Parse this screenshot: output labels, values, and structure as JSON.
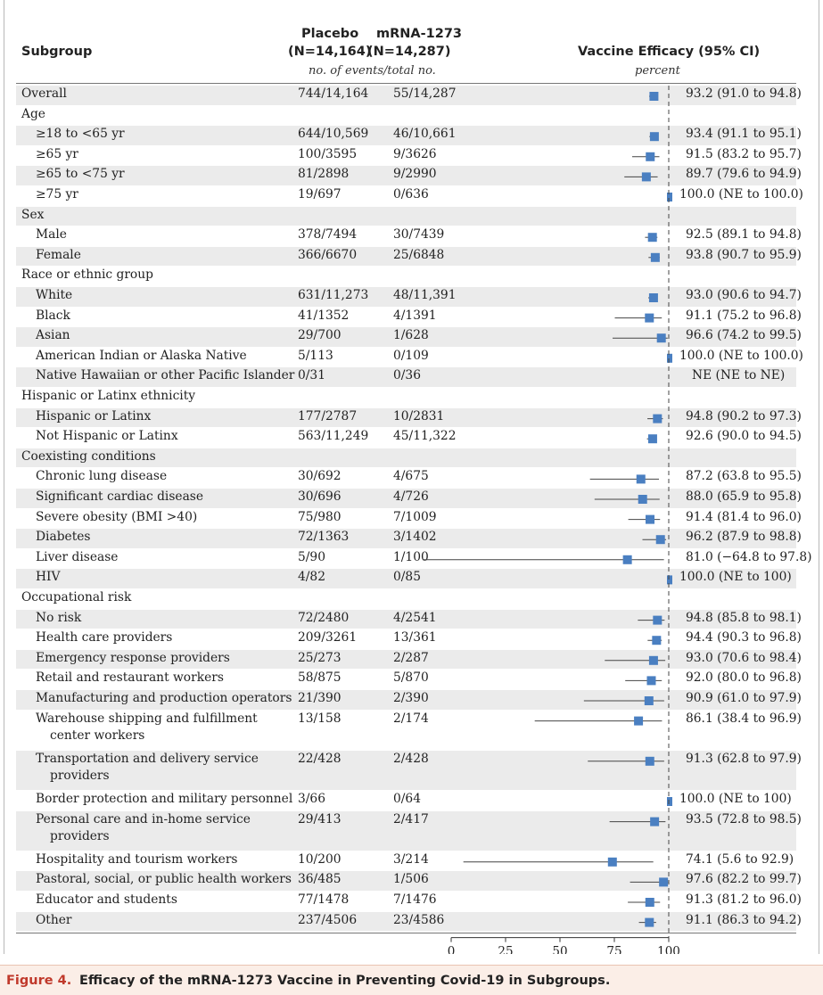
{
  "header": {
    "subgroup": "Subgroup",
    "placebo_title": "Placebo",
    "placebo_n": "(N=14,164)",
    "mrna_title": "mRNA-1273",
    "mrna_n": "(N=14,287)",
    "events_label": "no. of events/total no.",
    "efficacy_title": "Vaccine Efficacy (95% CI)",
    "percent_label": "percent"
  },
  "caption": {
    "figure_label": "Figure 4.",
    "title": "Efficacy of the mRNA-1273 Vaccine in Preventing Covid-19 in Subgroups."
  },
  "colors": {
    "marker": "#4a7fc1",
    "caption_label": "#c0392b",
    "caption_bg": "#fbeee7"
  },
  "chart_data": {
    "type": "forest",
    "xlim": [
      0,
      100
    ],
    "xticks": [
      "0",
      "25",
      "50",
      "75",
      "100"
    ],
    "reference_line": 100,
    "rows": [
      {
        "label": "Overall",
        "placebo": "744/14,164",
        "mrna": "55/14,287",
        "ci_text": "93.2 (91.0 to 94.8)",
        "ve": 93.2,
        "lo": 91.0,
        "hi": 94.8
      },
      {
        "label": "Age",
        "header": true
      },
      {
        "label": "≥18 to <65 yr",
        "indent": true,
        "placebo": "644/10,569",
        "mrna": "46/10,661",
        "ci_text": "93.4 (91.1 to 95.1)",
        "ve": 93.4,
        "lo": 91.1,
        "hi": 95.1
      },
      {
        "label": "≥65 yr",
        "indent": true,
        "placebo": "100/3595",
        "mrna": "9/3626",
        "ci_text": "91.5 (83.2 to 95.7)",
        "ve": 91.5,
        "lo": 83.2,
        "hi": 95.7
      },
      {
        "label": "≥65 to <75 yr",
        "indent": true,
        "placebo": "81/2898",
        "mrna": "9/2990",
        "ci_text": "89.7 (79.6 to 94.9)",
        "ve": 89.7,
        "lo": 79.6,
        "hi": 94.9
      },
      {
        "label": "≥75 yr",
        "indent": true,
        "placebo": "19/697",
        "mrna": "0/636",
        "ci_text": "100.0 (NE to 100.0)",
        "ve": 100.0,
        "lo": null,
        "hi": 100.0
      },
      {
        "label": "Sex",
        "header": true
      },
      {
        "label": "Male",
        "indent": true,
        "placebo": "378/7494",
        "mrna": "30/7439",
        "ci_text": "92.5 (89.1 to 94.8)",
        "ve": 92.5,
        "lo": 89.1,
        "hi": 94.8
      },
      {
        "label": "Female",
        "indent": true,
        "placebo": "366/6670",
        "mrna": "25/6848",
        "ci_text": "93.8 (90.7 to 95.9)",
        "ve": 93.8,
        "lo": 90.7,
        "hi": 95.9
      },
      {
        "label": "Race or ethnic group",
        "header": true
      },
      {
        "label": "White",
        "indent": true,
        "placebo": "631/11,273",
        "mrna": "48/11,391",
        "ci_text": "93.0 (90.6 to 94.7)",
        "ve": 93.0,
        "lo": 90.6,
        "hi": 94.7
      },
      {
        "label": "Black",
        "indent": true,
        "placebo": "41/1352",
        "mrna": "4/1391",
        "ci_text": "91.1 (75.2 to 96.8)",
        "ve": 91.1,
        "lo": 75.2,
        "hi": 96.8
      },
      {
        "label": "Asian",
        "indent": true,
        "placebo": "29/700",
        "mrna": "1/628",
        "ci_text": "96.6 (74.2 to 99.5)",
        "ve": 96.6,
        "lo": 74.2,
        "hi": 99.5
      },
      {
        "label": "American Indian or Alaska Native",
        "indent": true,
        "placebo": "5/113",
        "mrna": "0/109",
        "ci_text": "100.0 (NE to 100.0)",
        "ve": 100.0,
        "lo": null,
        "hi": 100.0
      },
      {
        "label": "Native Hawaiian or other Pacific Islander",
        "indent": true,
        "placebo": "0/31",
        "mrna": "0/36",
        "ci_text": "NE (NE to NE)",
        "ve": null,
        "lo": null,
        "hi": null
      },
      {
        "label": "Hispanic or Latinx ethnicity",
        "header": true
      },
      {
        "label": "Hispanic or Latinx",
        "indent": true,
        "placebo": "177/2787",
        "mrna": "10/2831",
        "ci_text": "94.8 (90.2 to 97.3)",
        "ve": 94.8,
        "lo": 90.2,
        "hi": 97.3
      },
      {
        "label": "Not Hispanic or Latinx",
        "indent": true,
        "placebo": "563/11,249",
        "mrna": "45/11,322",
        "ci_text": "92.6 (90.0 to 94.5)",
        "ve": 92.6,
        "lo": 90.0,
        "hi": 94.5
      },
      {
        "label": "Coexisting conditions",
        "header": true
      },
      {
        "label": "Chronic lung disease",
        "indent": true,
        "placebo": "30/692",
        "mrna": "4/675",
        "ci_text": "87.2 (63.8 to 95.5)",
        "ve": 87.2,
        "lo": 63.8,
        "hi": 95.5
      },
      {
        "label": "Significant cardiac disease",
        "indent": true,
        "placebo": "30/696",
        "mrna": "4/726",
        "ci_text": "88.0 (65.9 to 95.8)",
        "ve": 88.0,
        "lo": 65.9,
        "hi": 95.8
      },
      {
        "label": "Severe obesity (BMI >40)",
        "indent": true,
        "placebo": "75/980",
        "mrna": "7/1009",
        "ci_text": "91.4 (81.4 to 96.0)",
        "ve": 91.4,
        "lo": 81.4,
        "hi": 96.0
      },
      {
        "label": "Diabetes",
        "indent": true,
        "placebo": "72/1363",
        "mrna": "3/1402",
        "ci_text": "96.2 (87.9 to 98.8)",
        "ve": 96.2,
        "lo": 87.9,
        "hi": 98.8
      },
      {
        "label": "Liver disease",
        "indent": true,
        "placebo": "5/90",
        "mrna": "1/100",
        "ci_text": "81.0 (−64.8 to 97.8)",
        "ve": 81.0,
        "lo": -64.8,
        "hi": 97.8
      },
      {
        "label": "HIV",
        "indent": true,
        "placebo": "4/82",
        "mrna": "0/85",
        "ci_text": "100.0 (NE to 100)",
        "ve": 100.0,
        "lo": null,
        "hi": 100.0
      },
      {
        "label": "Occupational risk",
        "header": true
      },
      {
        "label": "No risk",
        "indent": true,
        "placebo": "72/2480",
        "mrna": "4/2541",
        "ci_text": "94.8 (85.8 to 98.1)",
        "ve": 94.8,
        "lo": 85.8,
        "hi": 98.1
      },
      {
        "label": "Health care providers",
        "indent": true,
        "placebo": "209/3261",
        "mrna": "13/361",
        "ci_text": "94.4 (90.3 to 96.8)",
        "ve": 94.4,
        "lo": 90.3,
        "hi": 96.8
      },
      {
        "label": "Emergency response providers",
        "indent": true,
        "placebo": "25/273",
        "mrna": "2/287",
        "ci_text": "93.0 (70.6 to 98.4)",
        "ve": 93.0,
        "lo": 70.6,
        "hi": 98.4
      },
      {
        "label": "Retail and restaurant workers",
        "indent": true,
        "placebo": "58/875",
        "mrna": "5/870",
        "ci_text": "92.0 (80.0 to 96.8)",
        "ve": 92.0,
        "lo": 80.0,
        "hi": 96.8
      },
      {
        "label": "Manufacturing and production operators",
        "indent": true,
        "placebo": "21/390",
        "mrna": "2/390",
        "ci_text": "90.9 (61.0 to 97.9)",
        "ve": 90.9,
        "lo": 61.0,
        "hi": 97.9
      },
      {
        "label": "Warehouse shipping and fulfillment",
        "label2": "center workers",
        "indent": true,
        "placebo": "13/158",
        "mrna": "2/174",
        "ci_text": "86.1 (38.4 to 96.9)",
        "ve": 86.1,
        "lo": 38.4,
        "hi": 96.9
      },
      {
        "label": "Transportation and delivery service",
        "label2": "providers",
        "indent": true,
        "placebo": "22/428",
        "mrna": "2/428",
        "ci_text": "91.3 (62.8 to 97.9)",
        "ve": 91.3,
        "lo": 62.8,
        "hi": 97.9
      },
      {
        "label": "Border protection and military personnel",
        "indent": true,
        "placebo": "3/66",
        "mrna": "0/64",
        "ci_text": "100.0 (NE to 100)",
        "ve": 100.0,
        "lo": null,
        "hi": 100.0
      },
      {
        "label": "Personal care and in-home service",
        "label2": "providers",
        "indent": true,
        "placebo": "29/413",
        "mrna": "2/417",
        "ci_text": "93.5 (72.8 to 98.5)",
        "ve": 93.5,
        "lo": 72.8,
        "hi": 98.5
      },
      {
        "label": "Hospitality and tourism workers",
        "indent": true,
        "placebo": "10/200",
        "mrna": "3/214",
        "ci_text": "74.1 (5.6 to 92.9)",
        "ve": 74.1,
        "lo": 5.6,
        "hi": 92.9
      },
      {
        "label": "Pastoral, social, or public health workers",
        "indent": true,
        "placebo": "36/485",
        "mrna": "1/506",
        "ci_text": "97.6 (82.2 to 99.7)",
        "ve": 97.6,
        "lo": 82.2,
        "hi": 99.7
      },
      {
        "label": "Educator and students",
        "indent": true,
        "placebo": "77/1478",
        "mrna": "7/1476",
        "ci_text": "91.3 (81.2 to 96.0)",
        "ve": 91.3,
        "lo": 81.2,
        "hi": 96.0
      },
      {
        "label": "Other",
        "indent": true,
        "placebo": "237/4506",
        "mrna": "23/4586",
        "ci_text": "91.1 (86.3 to 94.2)",
        "ve": 91.1,
        "lo": 86.3,
        "hi": 94.2
      }
    ]
  }
}
